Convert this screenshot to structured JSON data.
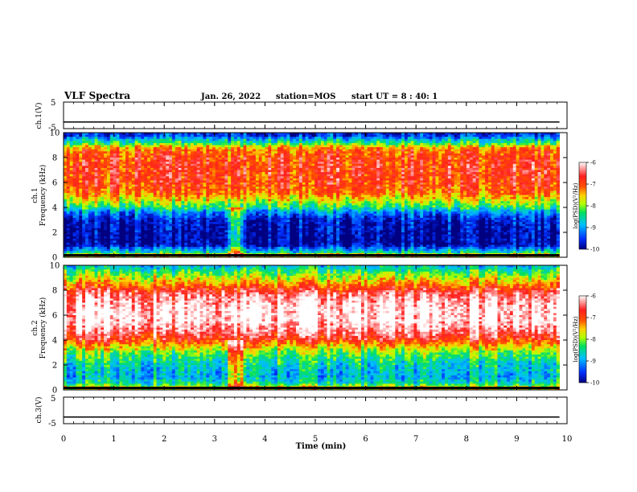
{
  "header": {
    "title": "VLF Spectra",
    "date": "Jan. 26, 2022",
    "station": "station=MOS",
    "start": "start UT =  8 : 40: 1"
  },
  "colors": {
    "cmap": [
      "#000080",
      "#0030ff",
      "#00c0ff",
      "#00e060",
      "#b0ff00",
      "#ffd000",
      "#ff5000",
      "#ff2020",
      "#ffffff"
    ]
  },
  "chart_data": [
    {
      "type": "line",
      "panel": "ch1-voltage",
      "ylabel": "ch.1(V)",
      "ylim": [
        -5,
        5
      ],
      "y_ticks": [
        "5",
        "-5"
      ],
      "x": [
        0,
        9.85
      ],
      "values": [
        -2.5,
        -2.5
      ]
    },
    {
      "type": "heatmap",
      "panel": "ch1-spectrogram",
      "ylabel": "ch.1\nFrequency (kHz)",
      "ylim": [
        0,
        10
      ],
      "y_ticks": [
        "0",
        "2",
        "4",
        "6",
        "8",
        "10"
      ],
      "xlim": [
        0,
        10
      ],
      "x_extent_min": 9.85,
      "profile": [
        {
          "f": 0.2,
          "v": -7.6
        },
        {
          "f": 0.4,
          "v": -8.6
        },
        {
          "f": 0.7,
          "v": -9.2
        },
        {
          "f": 1.0,
          "v": -9.9
        },
        {
          "f": 2.0,
          "v": -9.9
        },
        {
          "f": 3.0,
          "v": -9.7
        },
        {
          "f": 3.6,
          "v": -9.1
        },
        {
          "f": 4.0,
          "v": -8.4
        },
        {
          "f": 4.5,
          "v": -7.8
        },
        {
          "f": 5.2,
          "v": -7.1
        },
        {
          "f": 6.0,
          "v": -6.9
        },
        {
          "f": 7.0,
          "v": -6.8
        },
        {
          "f": 8.0,
          "v": -6.9
        },
        {
          "f": 8.7,
          "v": -7.2
        },
        {
          "f": 8.9,
          "v": -7.6
        },
        {
          "f": 9.1,
          "v": -8.2
        },
        {
          "f": 9.5,
          "v": -8.9
        },
        {
          "f": 9.8,
          "v": -9.6
        }
      ],
      "colorbar": {
        "label": "log(PSD)(V²/Hz)",
        "ticks": [
          "-6",
          "-7",
          "-8",
          "-9",
          "-10"
        ],
        "range": [
          -10,
          -6
        ]
      }
    },
    {
      "type": "heatmap",
      "panel": "ch2-spectrogram",
      "ylabel": "ch.2\nFrequency (kHz)",
      "ylim": [
        0,
        10
      ],
      "y_ticks": [
        "0",
        "2",
        "4",
        "6",
        "8",
        "10"
      ],
      "xlim": [
        0,
        10
      ],
      "x_extent_min": 9.85,
      "profile": [
        {
          "f": 0.2,
          "v": -7.7
        },
        {
          "f": 0.5,
          "v": -8.5
        },
        {
          "f": 1.0,
          "v": -8.9
        },
        {
          "f": 2.0,
          "v": -8.7
        },
        {
          "f": 3.0,
          "v": -8.1
        },
        {
          "f": 3.6,
          "v": -7.4
        },
        {
          "f": 4.0,
          "v": -6.9
        },
        {
          "f": 4.6,
          "v": -6.4
        },
        {
          "f": 5.5,
          "v": -6.0
        },
        {
          "f": 6.5,
          "v": -6.0
        },
        {
          "f": 7.5,
          "v": -6.3
        },
        {
          "f": 8.0,
          "v": -6.7
        },
        {
          "f": 8.5,
          "v": -7.3
        },
        {
          "f": 9.0,
          "v": -7.8
        },
        {
          "f": 9.5,
          "v": -8.3
        },
        {
          "f": 9.9,
          "v": -8.8
        }
      ],
      "colorbar": {
        "label": "log(PSD)(V²/Hz)",
        "ticks": [
          "-6",
          "-7",
          "-8",
          "-9",
          "-10"
        ],
        "range": [
          -10,
          -6
        ]
      }
    },
    {
      "type": "line",
      "panel": "ch3-voltage",
      "ylabel": "ch.3(V)",
      "ylim": [
        -5,
        5
      ],
      "y_ticks": [
        "5",
        "-5"
      ],
      "x": [
        0,
        9.85
      ],
      "values": [
        -2.5,
        -2.5
      ]
    }
  ],
  "x_axis": {
    "label": "Time (min)",
    "range": [
      0,
      10
    ],
    "ticks": [
      "0",
      "1",
      "2",
      "3",
      "4",
      "5",
      "6",
      "7",
      "8",
      "9",
      "10"
    ]
  }
}
